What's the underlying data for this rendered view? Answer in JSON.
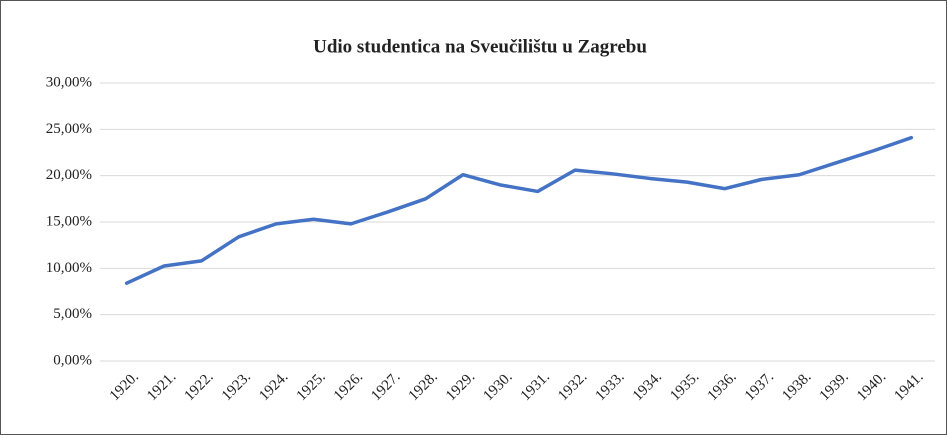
{
  "chart_data": {
    "type": "line",
    "title": "Udio studentica na Sveučilištu u Zagrebu",
    "categories": [
      "1920.",
      "1921.",
      "1922.",
      "1923.",
      "1924.",
      "1925.",
      "1926.",
      "1927.",
      "1928.",
      "1929.",
      "1930.",
      "1931.",
      "1932.",
      "1933.",
      "1934.",
      "1935.",
      "1936.",
      "1937.",
      "1938.",
      "1939.",
      "1940.",
      "1941."
    ],
    "series": [
      {
        "name": "Udio studentica",
        "color": "#4472c4",
        "values": [
          8.4,
          10.25,
          10.8,
          13.4,
          14.8,
          15.3,
          14.8,
          16.1,
          17.5,
          20.1,
          19.0,
          18.3,
          20.6,
          20.2,
          19.7,
          19.3,
          18.6,
          19.6,
          20.1,
          21.4,
          22.7,
          24.1
        ]
      }
    ],
    "ylim": [
      0,
      30
    ],
    "yticks": [
      {
        "value": 0,
        "label": "0,00%"
      },
      {
        "value": 5,
        "label": "5,00%"
      },
      {
        "value": 10,
        "label": "10,00%"
      },
      {
        "value": 15,
        "label": "15,00%"
      },
      {
        "value": 20,
        "label": "20,00%"
      },
      {
        "value": 25,
        "label": "25,00%"
      },
      {
        "value": 30,
        "label": "30,00%"
      }
    ],
    "grid": true
  }
}
